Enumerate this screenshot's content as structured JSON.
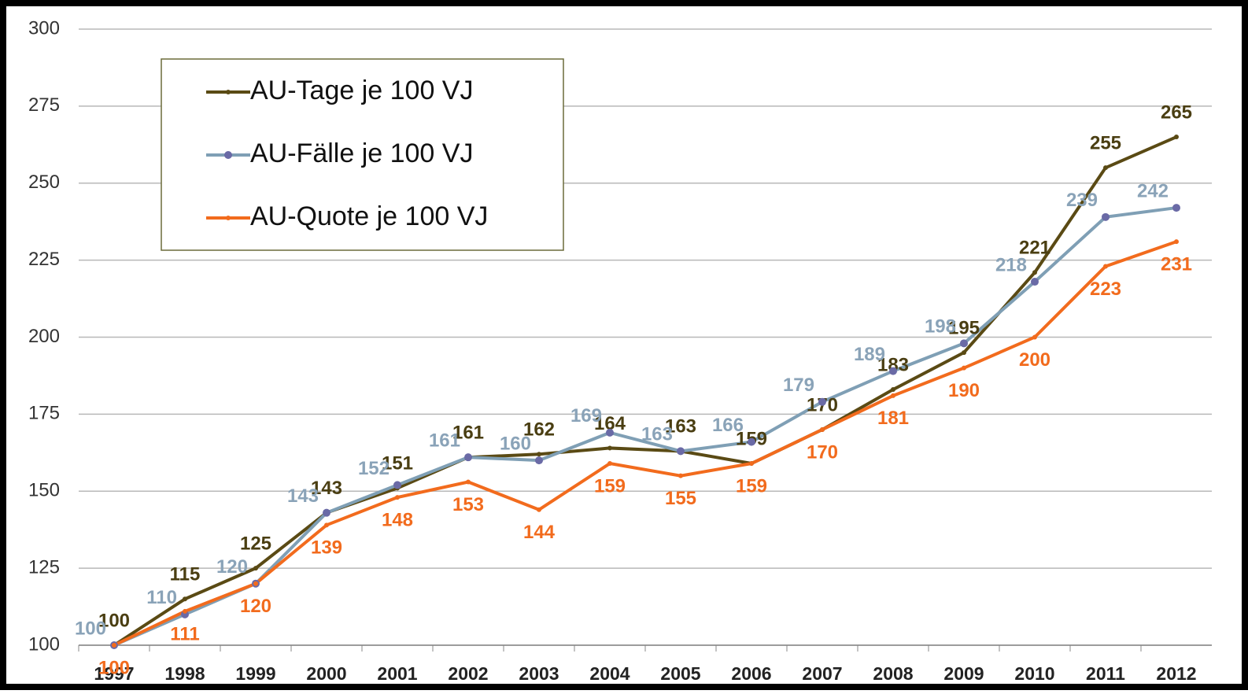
{
  "chart_data": {
    "type": "line",
    "categories": [
      "1997",
      "1998",
      "1999",
      "2000",
      "2001",
      "2002",
      "2003",
      "2004",
      "2005",
      "2006",
      "2007",
      "2008",
      "2009",
      "2010",
      "2011",
      "2012"
    ],
    "series": [
      {
        "name": "AU-Tage je 100 VJ",
        "color": "#5a4a14",
        "label_color": "#4a3e12",
        "values": [
          100,
          115,
          125,
          143,
          151,
          161,
          162,
          164,
          163,
          159,
          170,
          183,
          195,
          221,
          255,
          265
        ]
      },
      {
        "name": "AU-Fälle je 100 VJ",
        "color": "#7f9fb5",
        "marker_color": "#6a6aa6",
        "label_color": "#8aa3b8",
        "values": [
          100,
          110,
          120,
          143,
          152,
          161,
          160,
          169,
          163,
          166,
          179,
          189,
          198,
          218,
          239,
          242
        ]
      },
      {
        "name": "AU-Quote je 100 VJ",
        "color": "#f26b1d",
        "label_color": "#f26b1d",
        "values": [
          100,
          111,
          120,
          139,
          148,
          153,
          144,
          159,
          155,
          159,
          170,
          181,
          190,
          200,
          223,
          231
        ]
      }
    ],
    "ylim": [
      100,
      300
    ],
    "yticks": [
      100,
      125,
      150,
      175,
      200,
      225,
      250,
      275,
      300
    ],
    "grid": true,
    "legend": "upper left",
    "data_labels": true
  }
}
